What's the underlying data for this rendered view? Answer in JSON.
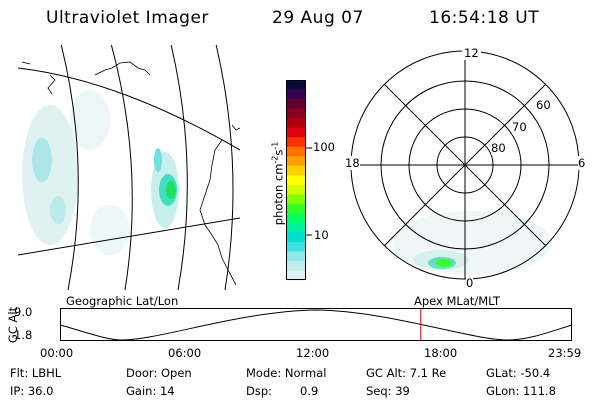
{
  "header": {
    "title": "Ultraviolet Imager",
    "date": "29 Aug 07",
    "time": "16:54:18 UT"
  },
  "colorbar": {
    "label": "photon cm",
    "label_exp1": "-2",
    "label_mid": "s",
    "label_exp2": "-1",
    "ticks": [
      "100",
      "10"
    ],
    "colors": [
      "#0a0a3a",
      "#3a0050",
      "#600030",
      "#8a0020",
      "#b00010",
      "#e00010",
      "#ff3000",
      "#ff7000",
      "#ffa000",
      "#ffd000",
      "#ffff00",
      "#d0ff00",
      "#80ff00",
      "#30ff20",
      "#00ff60",
      "#00f0a0",
      "#00e0d0",
      "#40e0e0",
      "#90e8e8",
      "#c0eeee",
      "#e0f2f2"
    ]
  },
  "polar": {
    "mlt_labels": [
      "12",
      "18",
      "6",
      "0"
    ],
    "lat_labels": [
      "60",
      "70",
      "80"
    ]
  },
  "track": {
    "y_axis_label": "GC Alt",
    "y_max": "9.0",
    "y_min": "1.8",
    "left_title": "Geographic Lat/Lon",
    "right_title": "Apex MLat/MLT",
    "time_ticks": [
      "00:00",
      "06:00",
      "12:00",
      "18:00",
      "23:59"
    ],
    "current_marker_time": "16:54"
  },
  "info": {
    "row1": {
      "filter": "Flt: LBHL",
      "door": "Door: Open",
      "mode": "Mode: Normal",
      "gc_alt": "GC Alt: 7.1 Re",
      "glat": "GLat: -50.4"
    },
    "row2": {
      "ip": "IP: 36.0",
      "gain": "Gain: 14",
      "dsp_label": "Dsp:",
      "dsp_value": "0.9",
      "seq": "Seq: 39",
      "glon": "GLon: 111.8"
    }
  },
  "theme": {
    "marker_color": "#cc0000",
    "line_color": "#000000"
  }
}
